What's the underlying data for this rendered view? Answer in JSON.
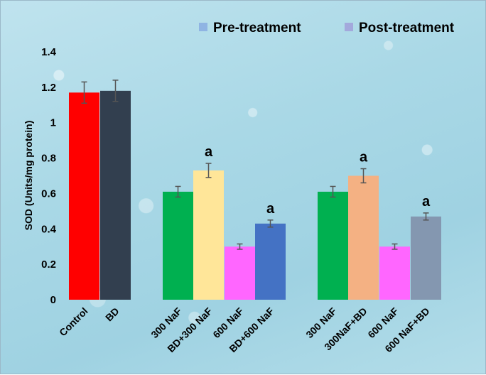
{
  "chart_data": {
    "type": "bar",
    "ylabel": "SOD (Units/mg protein)",
    "xlabel": "",
    "ylim": [
      0,
      1.4
    ],
    "yticks": [
      0,
      0.2,
      0.4,
      0.6,
      0.8,
      1,
      1.2,
      1.4
    ],
    "grid": false,
    "legend_position": "top-right",
    "legend": [
      {
        "name": "Pre-treatment",
        "color": "#8fb4e3"
      },
      {
        "name": "Post-treatment",
        "color": "#a3a9dc"
      }
    ],
    "bars": [
      {
        "label": "Control",
        "value": 1.17,
        "error": 0.06,
        "color": "#ff0000",
        "annotation": ""
      },
      {
        "label": "BD",
        "value": 1.18,
        "error": 0.06,
        "color": "#323f4f",
        "annotation": ""
      },
      {
        "label": "300 NaF",
        "value": 0.61,
        "error": 0.03,
        "color": "#00b050",
        "annotation": ""
      },
      {
        "label": "BD+300 NaF",
        "value": 0.73,
        "error": 0.04,
        "color": "#ffe699",
        "annotation": "a"
      },
      {
        "label": "600 NaF",
        "value": 0.3,
        "error": 0.015,
        "color": "#ff66ff",
        "annotation": ""
      },
      {
        "label": "BD+600 NaF",
        "value": 0.43,
        "error": 0.02,
        "color": "#4472c4",
        "annotation": "a"
      },
      {
        "label": "300 NaF",
        "value": 0.61,
        "error": 0.03,
        "color": "#00b050",
        "annotation": ""
      },
      {
        "label": "300NaF+BD",
        "value": 0.7,
        "error": 0.04,
        "color": "#f4b183",
        "annotation": "a"
      },
      {
        "label": "600 NaF",
        "value": 0.3,
        "error": 0.015,
        "color": "#ff66ff",
        "annotation": ""
      },
      {
        "label": "600 NaF+BD",
        "value": 0.47,
        "error": 0.02,
        "color": "#8497b0",
        "annotation": "a"
      }
    ]
  }
}
